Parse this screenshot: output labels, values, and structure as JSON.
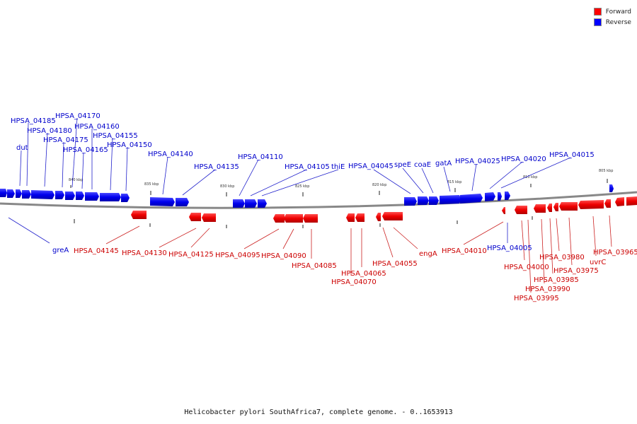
{
  "legend": [
    {
      "label": "Forward",
      "color": "#ff0000"
    },
    {
      "label": "Reverse",
      "color": "#0000ff"
    }
  ],
  "caption": "Helicobacter pylori SouthAfrica7, complete genome. - 0..1653913",
  "colors": {
    "forward": "#ff0000",
    "reverse": "#0000ff",
    "backbone": "#888888"
  },
  "scale_labels": [
    "840 kbp",
    "835 kbp",
    "830 kbp",
    "825 kbp",
    "820 kbp",
    "815 kbp",
    "810 kbp",
    "805 kbp"
  ],
  "reverse_labels": [
    "HPSA_04185",
    "HPSA_04170",
    "HPSA_04180",
    "HPSA_04160",
    "dut",
    "HPSA_04175",
    "HPSA_04155",
    "HPSA_04165",
    "HPSA_04150",
    "HPSA_04140",
    "HPSA_04110",
    "HPSA_04135",
    "HPSA_04105",
    "thiE",
    "HPSA_04045",
    "speE",
    "coaE",
    "gatA",
    "HPSA_04025",
    "HPSA_04020",
    "HPSA_04015",
    "greA",
    "HPSA_04005"
  ],
  "forward_labels": [
    "HPSA_04145",
    "HPSA_04130",
    "HPSA_04125",
    "HPSA_04095",
    "HPSA_04090",
    "HPSA_04085",
    "HPSA_04065",
    "HPSA_04070",
    "HPSA_04055",
    "engA",
    "HPSA_04010",
    "HPSA_04000",
    "HPSA_03980",
    "HPSA_03975",
    "HPSA_03985",
    "HPSA_03990",
    "HPSA_03995",
    "uvrC",
    "HPSA_03965"
  ]
}
